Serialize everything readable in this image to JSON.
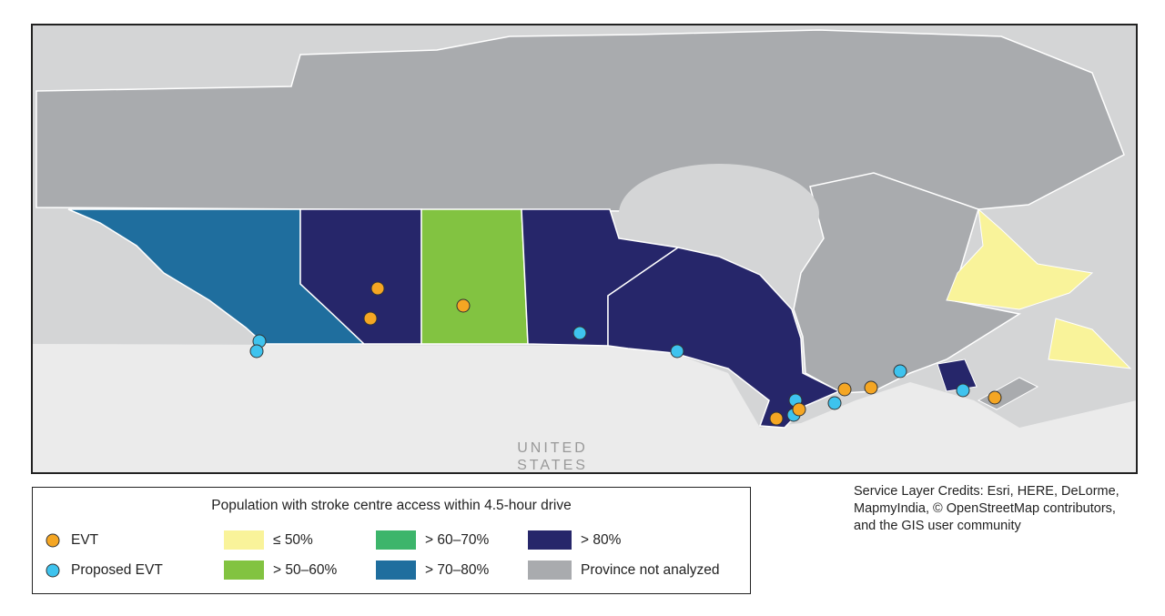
{
  "map": {
    "labels": [
      "UNITED",
      "STATES"
    ]
  },
  "legend": {
    "title": "Population with stroke centre access within 4.5-hour drive",
    "markers": [
      "EVT",
      "Proposed EVT"
    ],
    "classes": [
      "≤ 50%",
      "> 50–60%",
      "> 60–70%",
      "> 70–80%",
      "> 80%",
      "Province not analyzed"
    ]
  },
  "credits": [
    "Service Layer Credits: Esri, HERE, DeLorme,",
    "MapmyIndia, © OpenStreetMap contributors,",
    "and the GIS user community"
  ]
}
